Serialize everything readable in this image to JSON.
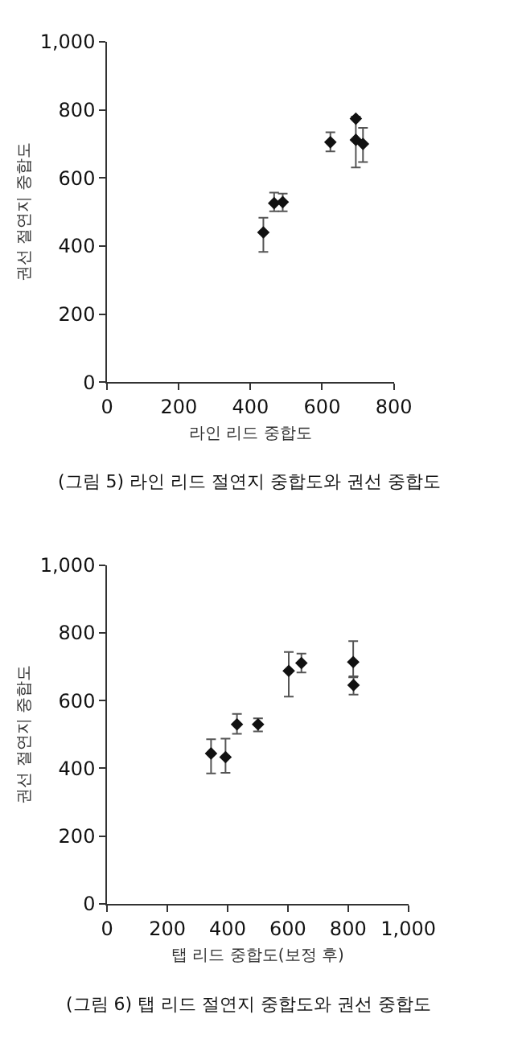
{
  "chart_data": [
    {
      "type": "scatter",
      "xlabel": "라인 리드 중합도",
      "ylabel": "권선 절연지 중합도",
      "x": [
        436,
        466,
        490,
        623,
        694,
        694,
        714
      ],
      "series": [
        {
          "color": "#111111",
          "values": [
            440,
            526,
            529,
            705,
            774,
            712,
            700
          ],
          "errors": [
            [
              383,
              483
            ],
            [
              502,
              557
            ],
            [
              502,
              554
            ],
            [
              678,
              734
            ],
            null,
            [
              631,
              780
            ],
            [
              647,
              747
            ]
          ]
        }
      ],
      "xlim": [
        0,
        800
      ],
      "xticks": [
        0,
        200,
        400,
        600,
        800
      ],
      "ylim": [
        0,
        1000
      ],
      "yticks": [
        0,
        200,
        400,
        600,
        800,
        {
          "value": 1000,
          "label": "1,000"
        }
      ],
      "marker": "diamond",
      "annotations": [
        "(그림 5) 라인 리드 절연지 중합도와 권선 중합도"
      ]
    },
    {
      "type": "scatter",
      "xlabel": "탭 리드 중합도(보정 후)",
      "ylabel": "권선 절연지 중합도",
      "x": [
        345,
        393,
        431,
        501,
        603,
        645,
        817,
        818
      ],
      "series": [
        {
          "color": "#111111",
          "values": [
            444,
            433,
            530,
            530,
            688,
            711,
            714,
            646
          ],
          "errors": [
            [
              385,
              486
            ],
            [
              387,
              488
            ],
            [
              502,
              561
            ],
            [
              509,
              548
            ],
            [
              612,
              744
            ],
            [
              683,
              739
            ],
            [
              669,
              776
            ],
            [
              618,
              672
            ]
          ]
        }
      ],
      "xlim": [
        0,
        1000
      ],
      "xticks": [
        0,
        200,
        400,
        600,
        800,
        {
          "value": 1000,
          "label": "1,000"
        }
      ],
      "ylim": [
        0,
        1000
      ],
      "yticks": [
        0,
        200,
        400,
        600,
        800,
        {
          "value": 1000,
          "label": "1,000"
        }
      ],
      "marker": "diamond",
      "annotations": [
        "(그림 6) 탭 리드 절연지 중합도와 권선 중합도"
      ]
    }
  ]
}
